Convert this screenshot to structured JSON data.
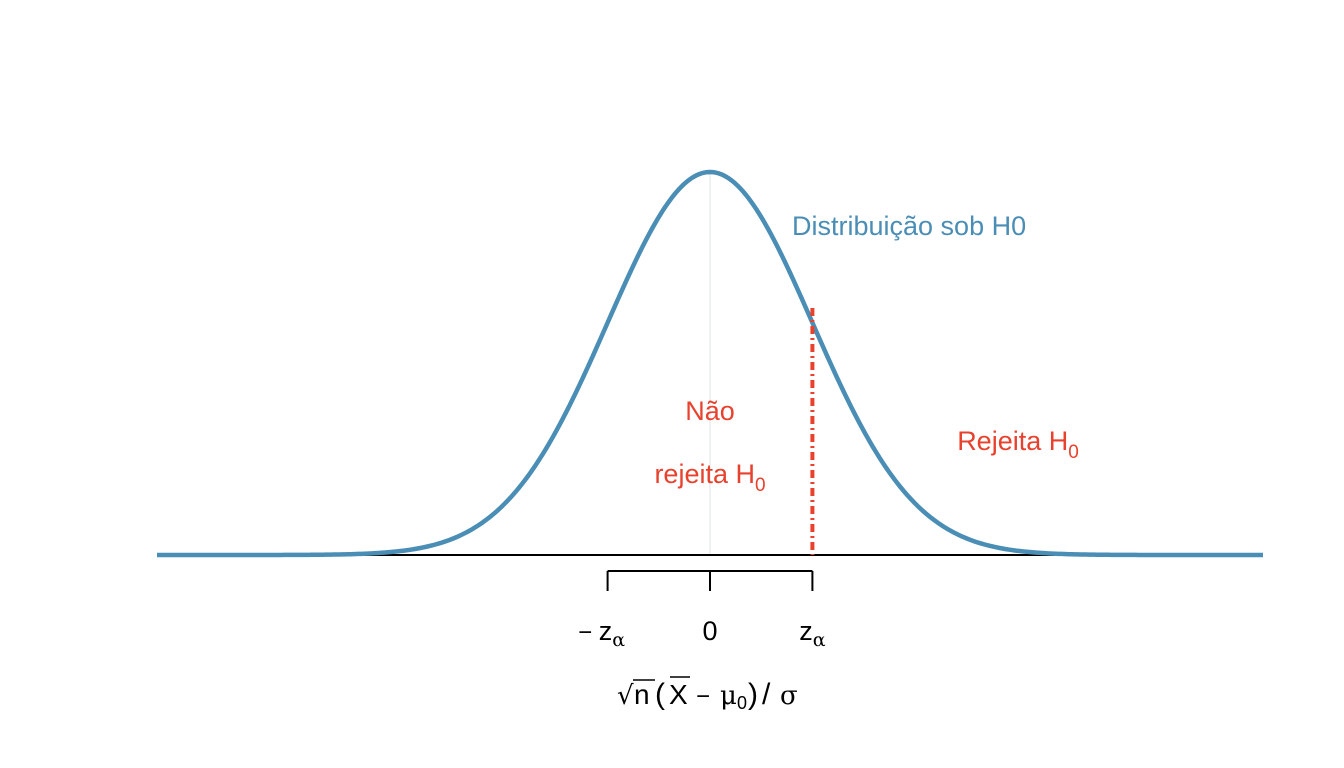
{
  "colors": {
    "curve": "#4A8DB5",
    "critical_line": "#E8412D",
    "region_text": "#E8412D",
    "axis": "#000000",
    "center_line": "#DDE6EC"
  },
  "chart_data": {
    "type": "line",
    "title": "",
    "xlabel": {
      "sqrt": "√",
      "n": "n",
      "open": "(",
      "xbar": "X",
      "minus": "−",
      "mu": "μ",
      "mu_sub": "0",
      "close": ")",
      "slash": "/",
      "sigma": "σ"
    },
    "x_range": [
      -5.4,
      5.4
    ],
    "y_range": [
      0,
      0.4
    ],
    "series": [
      {
        "distribution": "normal",
        "mean": 0,
        "sd": 1
      }
    ],
    "critical_value": 1,
    "ticks": [
      {
        "x": -1,
        "prefix": "−",
        "main": "z",
        "sub": "α"
      },
      {
        "x": 0,
        "prefix": "",
        "main": "0",
        "sub": ""
      },
      {
        "x": 1,
        "prefix": "",
        "main": "z",
        "sub": "α"
      }
    ],
    "annotations": {
      "curve_label": "Distribuição sob H0",
      "not_reject_line1": "Não",
      "not_reject_line2": "rejeita H",
      "not_reject_sub": "0",
      "reject": "Rejeita H",
      "reject_sub": "0"
    }
  }
}
